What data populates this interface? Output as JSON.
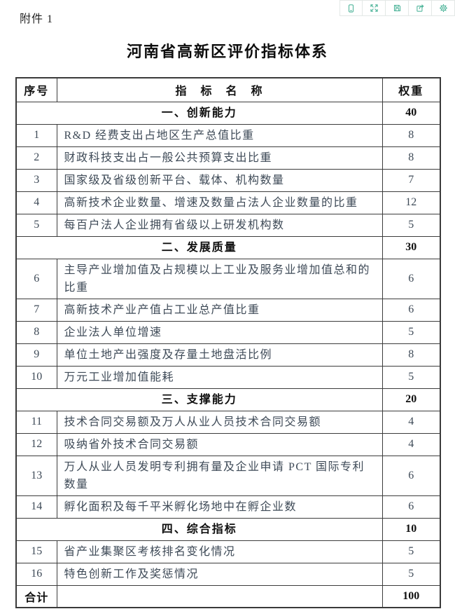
{
  "colors": {
    "accent_teal": "#3fae91",
    "toolbar_border": "#e3e8e6",
    "grid_line": "#3c3c3c",
    "body_text": "#3e4a57",
    "heading_text": "#0f0f0f"
  },
  "toolbar": {
    "buttons": [
      {
        "icon": "mobile-view-icon"
      },
      {
        "icon": "fullscreen-icon"
      },
      {
        "icon": "save-icon"
      },
      {
        "icon": "share-icon"
      },
      {
        "icon": "settings-icon"
      }
    ]
  },
  "document": {
    "attachment_label": "附件 1",
    "title": "河南省高新区评价指标体系"
  },
  "table": {
    "headers": {
      "index": "序号",
      "name": "指　标　名　称",
      "weight": "权重"
    },
    "rows": [
      {
        "type": "section",
        "name": "一、创新能力",
        "weight": "40"
      },
      {
        "type": "item",
        "index": "1",
        "name": "R&D 经费支出占地区生产总值比重",
        "weight": "8"
      },
      {
        "type": "item",
        "index": "2",
        "name": "财政科技支出占一般公共预算支出比重",
        "weight": "8"
      },
      {
        "type": "item",
        "index": "3",
        "name": "国家级及省级创新平台、载体、机构数量",
        "weight": "7"
      },
      {
        "type": "item",
        "index": "4",
        "name": "高新技术企业数量、增速及数量占法人企业数量的比重",
        "weight": "12"
      },
      {
        "type": "item",
        "index": "5",
        "name": "每百户法人企业拥有省级以上研发机构数",
        "weight": "5"
      },
      {
        "type": "section",
        "name": "二、发展质量",
        "weight": "30"
      },
      {
        "type": "item",
        "index": "6",
        "name": "主导产业增加值及占规模以上工业及服务业增加值总和的比重",
        "weight": "6"
      },
      {
        "type": "item",
        "index": "7",
        "name": "高新技术产业产值占工业总产值比重",
        "weight": "6"
      },
      {
        "type": "item",
        "index": "8",
        "name": "企业法人单位增速",
        "weight": "5"
      },
      {
        "type": "item",
        "index": "9",
        "name": "单位土地产出强度及存量土地盘活比例",
        "weight": "8"
      },
      {
        "type": "item",
        "index": "10",
        "name": "万元工业增加值能耗",
        "weight": "5"
      },
      {
        "type": "section",
        "name": "三、支撑能力",
        "weight": "20"
      },
      {
        "type": "item",
        "index": "11",
        "name": "技术合同交易额及万人从业人员技术合同交易额",
        "weight": "4"
      },
      {
        "type": "item",
        "index": "12",
        "name": "吸纳省外技术合同交易额",
        "weight": "4"
      },
      {
        "type": "item",
        "index": "13",
        "name": "万人从业人员发明专利拥有量及企业申请 PCT 国际专利数量",
        "weight": "6"
      },
      {
        "type": "item",
        "index": "14",
        "name": "孵化面积及每千平米孵化场地中在孵企业数",
        "weight": "6"
      },
      {
        "type": "section",
        "name": "四、综合指标",
        "weight": "10"
      },
      {
        "type": "item",
        "index": "15",
        "name": "省产业集聚区考核排名变化情况",
        "weight": "5"
      },
      {
        "type": "item",
        "index": "16",
        "name": "特色创新工作及奖惩情况",
        "weight": "5"
      },
      {
        "type": "total",
        "label": "合计",
        "weight": "100"
      }
    ]
  }
}
